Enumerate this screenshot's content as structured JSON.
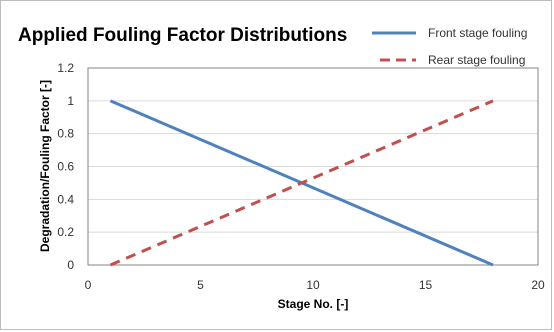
{
  "chart_data": {
    "type": "line",
    "title": "Applied Fouling Factor Distributions",
    "xlabel": "Stage No.  [-]",
    "ylabel": "Degradation/Fouling Factor  [-]",
    "xlim": [
      0,
      20
    ],
    "ylim": [
      0,
      1.2
    ],
    "x_ticks": [
      "0",
      "5",
      "10",
      "15",
      "20"
    ],
    "y_ticks": [
      "0",
      "0.2",
      "0.4",
      "0.6",
      "0.8",
      "1",
      "1.2"
    ],
    "x_tick_values": [
      0,
      5,
      10,
      15,
      20
    ],
    "y_tick_values": [
      0,
      0.2,
      0.4,
      0.6,
      0.8,
      1.0,
      1.2
    ],
    "grid": "horizontal",
    "legend_position": "top-right",
    "series": [
      {
        "name": "Front stage fouling",
        "style": "solid",
        "color": "#4f81bd",
        "x": [
          1,
          18
        ],
        "y": [
          1,
          0
        ]
      },
      {
        "name": "Rear stage fouling",
        "style": "dashed",
        "color": "#c0504d",
        "x": [
          1,
          18
        ],
        "y": [
          0,
          1
        ]
      }
    ]
  }
}
